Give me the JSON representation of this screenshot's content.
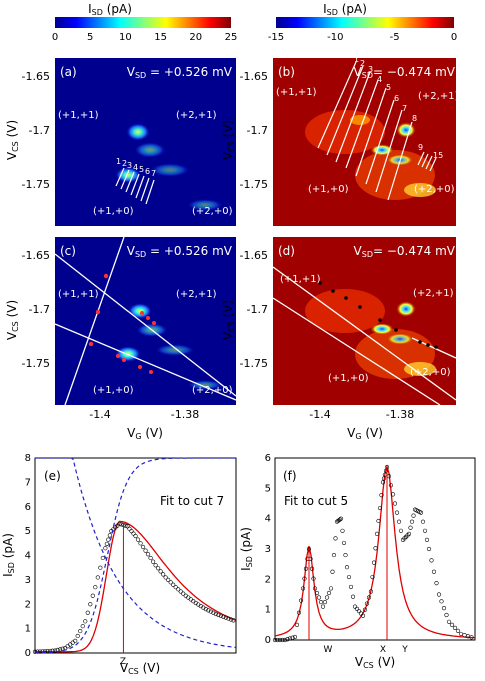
{
  "colorbars": [
    {
      "label": "I_SD (pA)",
      "ticks": [
        "0",
        "5",
        "10",
        "15",
        "20",
        "25"
      ]
    },
    {
      "label": "I_SD (pA)",
      "ticks": [
        "-15",
        "-10",
        "-5",
        "0"
      ]
    }
  ],
  "panels": {
    "a": {
      "letter": "(a)",
      "vsd": "V_SD = +0.526 mV",
      "charge_labels": [
        "(+1,+1)",
        "(+2,+1)",
        "(+1,+0)",
        "(+2,+0)"
      ],
      "cut_labels": [
        "1",
        "2",
        "3",
        "4",
        "5",
        "6",
        "7"
      ]
    },
    "b": {
      "letter": "(b)",
      "vsd": "V_SD = −0.474 mV",
      "charge_labels": [
        "(+1,+1)",
        "(+2,+1)",
        "(+1,+0)",
        "(+2,+0)"
      ],
      "cut_labels": [
        "1",
        "2",
        "3",
        "4",
        "5",
        "6",
        "7",
        "8",
        "9",
        "15"
      ]
    },
    "c": {
      "letter": "(c)",
      "vsd": "V_SD = +0.526 mV",
      "charge_labels": [
        "(+1,+1)",
        "(+2,+1)",
        "(+1,+0)",
        "(+2,+0)"
      ]
    },
    "d": {
      "letter": "(d)",
      "vsd": "V_SD = −0.474 mV",
      "charge_labels": [
        "(+1,+1)",
        "(+2,+1)",
        "(+1,+0)",
        "(+2,+0)"
      ]
    },
    "e": {
      "letter": "(e)",
      "fit_label": "Fit to cut 7",
      "marker": "Z"
    },
    "f": {
      "letter": "(f)",
      "fit_label": "Fit to cut 5",
      "markers": [
        "W",
        "X",
        "Y"
      ]
    }
  },
  "axes": {
    "vcs_label": "V_CS (V)",
    "vg_label": "V_G (V)",
    "isd_label": "I_SD (pA)",
    "map_y_ticks": [
      "-1.65",
      "-1.7",
      "-1.75"
    ],
    "map_x_ticks": [
      "-1.4",
      "-1.38"
    ],
    "e_y_ticks": [
      "0",
      "1",
      "2",
      "3",
      "4",
      "5",
      "6",
      "7",
      "8"
    ],
    "f_y_ticks": [
      "0",
      "1",
      "2",
      "3",
      "4",
      "5",
      "6"
    ]
  },
  "chart_data": [
    {
      "type": "heatmap",
      "panel": "a",
      "title": "V_SD = +0.526 mV",
      "xlabel": "V_G (V)",
      "ylabel": "V_CS (V)",
      "colorbar_range": [
        0,
        25
      ],
      "colorscale": "jet",
      "note_features": "bright triangle features near V_G -1.39, V_CS -1.70 to -1.75"
    },
    {
      "type": "heatmap",
      "panel": "b",
      "title": "V_SD = −0.474 mV",
      "xlabel": "V_G (V)",
      "ylabel": "V_CS (V)",
      "colorbar_range": [
        -15,
        0
      ],
      "colorscale": "jet"
    },
    {
      "type": "line",
      "panel": "e",
      "xlabel": "V_CS (V)",
      "ylabel": "I_SD (pA)",
      "ylim": [
        0,
        8
      ],
      "annotation": "Fit to cut 7",
      "series": [
        {
          "name": "data",
          "x": [
            0,
            0.05,
            0.1,
            0.15,
            0.2,
            0.25,
            0.3,
            0.35,
            0.38,
            0.42,
            0.46,
            0.5,
            0.55,
            0.6,
            0.65,
            0.7,
            0.75,
            0.8,
            0.85,
            0.9,
            0.95,
            1.0
          ],
          "values": [
            0.05,
            0.07,
            0.1,
            0.2,
            0.5,
            1.3,
            2.7,
            4.3,
            5.0,
            5.3,
            5.2,
            4.8,
            4.2,
            3.6,
            3.1,
            2.7,
            2.35,
            2.05,
            1.8,
            1.6,
            1.45,
            1.3
          ]
        }
      ]
    },
    {
      "type": "line",
      "panel": "f",
      "xlabel": "V_CS (V)",
      "ylabel": "I_SD (pA)",
      "ylim": [
        0,
        6
      ],
      "annotation": "Fit to cut 5",
      "series": [
        {
          "name": "data",
          "x": [
            0,
            0.05,
            0.1,
            0.14,
            0.17,
            0.2,
            0.24,
            0.28,
            0.31,
            0.33,
            0.36,
            0.4,
            0.44,
            0.48,
            0.51,
            0.54,
            0.56,
            0.6,
            0.64,
            0.67,
            0.7,
            0.73,
            0.77,
            0.82,
            0.87,
            0.93,
            1.0
          ],
          "values": [
            0.0,
            0.0,
            0.1,
            1.7,
            3.0,
            1.7,
            1.1,
            1.7,
            3.9,
            4.0,
            2.4,
            1.1,
            0.8,
            1.6,
            3.5,
            5.2,
            5.7,
            4.5,
            3.3,
            3.5,
            4.3,
            4.2,
            3.0,
            1.5,
            0.6,
            0.2,
            0.05
          ]
        }
      ]
    }
  ]
}
